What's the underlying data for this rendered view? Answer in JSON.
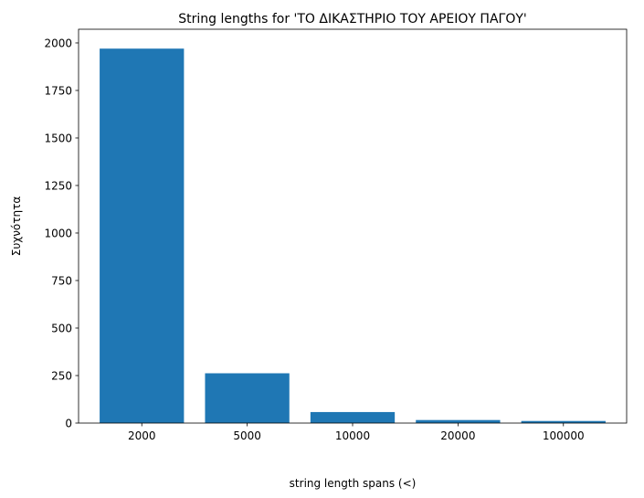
{
  "chart_data": {
    "type": "bar",
    "title": "String lengths for 'ΤΟ ΔΙΚΑΣΤΗΡΙΟ ΤΟΥ ΑΡΕΙΟΥ ΠΑΓΟΥ'",
    "xlabel": "string length spans (<)",
    "ylabel": "Συχνότητα",
    "categories": [
      "2000",
      "5000",
      "10000",
      "20000",
      "100000"
    ],
    "values": [
      1970,
      262,
      58,
      16,
      11
    ],
    "ylim": [
      0,
      2072
    ],
    "yticks": [
      0,
      250,
      500,
      750,
      1000,
      1250,
      1500,
      1750,
      2000
    ],
    "bar_color": "#1f77b4",
    "grid": false,
    "legend": "none"
  }
}
